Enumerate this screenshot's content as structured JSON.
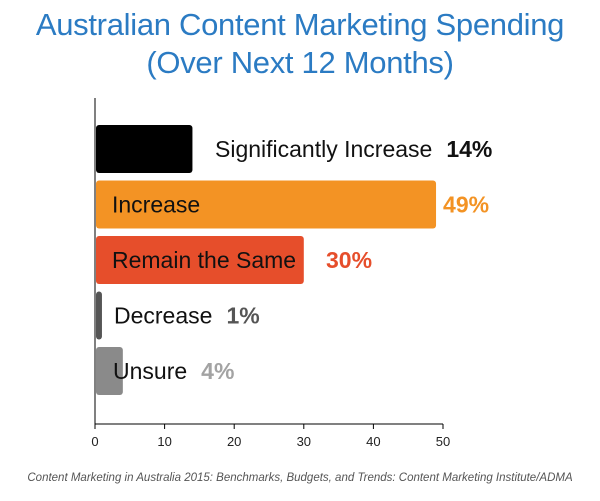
{
  "title_line1": "Australian Content Marketing Spending",
  "title_line2": "(Over Next 12 Months)",
  "source": "Content Marketing in Australia 2015: Benchmarks, Budgets, and Trends: Content Marketing Institute/ADMA",
  "chart_data": {
    "type": "bar",
    "orientation": "horizontal",
    "categories": [
      "Significantly Increase",
      "Increase",
      "Remain the Same",
      "Decrease",
      "Unsure"
    ],
    "values": [
      14,
      49,
      30,
      1,
      4
    ],
    "value_labels": [
      "14%",
      "49%",
      "30%",
      "1%",
      "4%"
    ],
    "colors": [
      "#000000",
      "#f39324",
      "#e64e2b",
      "#555555",
      "#8a8a8a"
    ],
    "label_colors": [
      "#111111",
      "#f39324",
      "#e64e2b",
      "#555555",
      "#a3a3a3"
    ],
    "xlim": [
      0,
      50
    ],
    "xticks": [
      0,
      10,
      20,
      30,
      40,
      50
    ],
    "grid": false
  }
}
